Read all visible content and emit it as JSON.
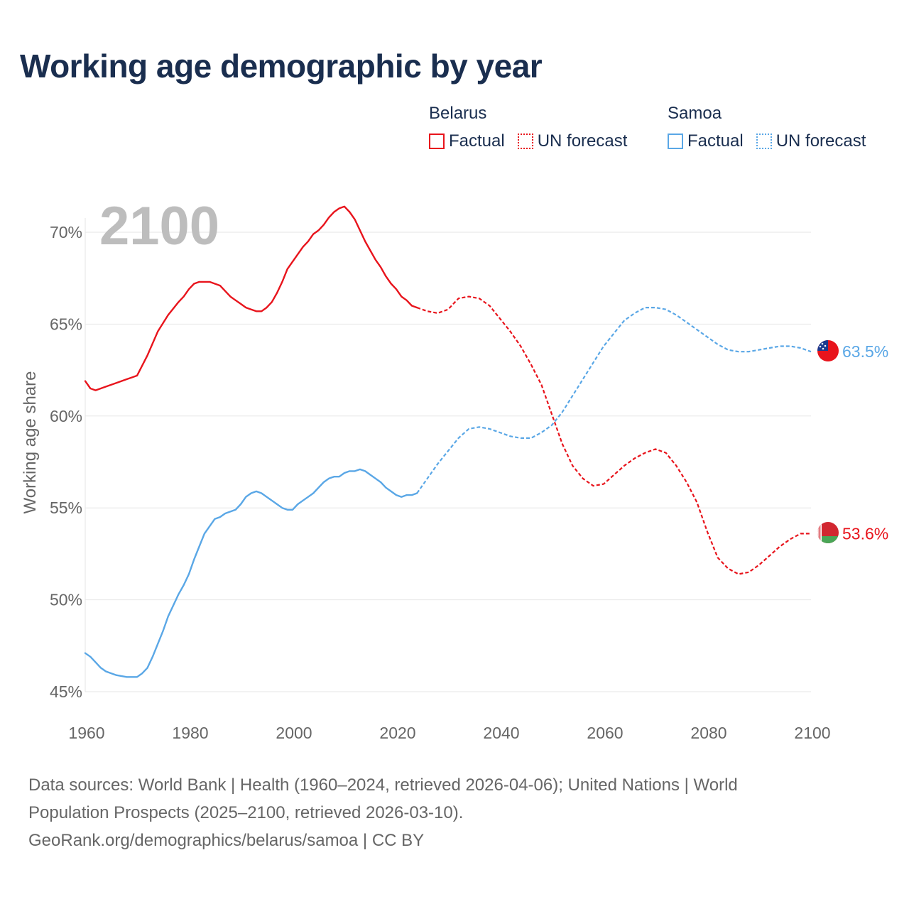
{
  "title": "Working age demographic by year",
  "year_watermark": "2100",
  "legend": {
    "groups": [
      {
        "name": "Belarus",
        "color": "#e8141c",
        "factual_label": "Factual",
        "forecast_label": "UN forecast"
      },
      {
        "name": "Samoa",
        "color": "#5aa7e6",
        "factual_label": "Factual",
        "forecast_label": "UN forecast"
      }
    ]
  },
  "footer": {
    "line1": "Data sources: World Bank | Health (1960–2024, retrieved 2026-04-06); United Nations | World",
    "line2": "Population Prospects (2025–2100, retrieved 2026-03-10).",
    "line3": "GeoRank.org/demographics/belarus/samoa | CC BY"
  },
  "colors": {
    "belarus": "#e8141c",
    "samoa": "#5aa7e6",
    "title": "#1a2e4f",
    "axis_text": "#666666",
    "grid": "#e6e6e6",
    "watermark": "#bdbdbd"
  },
  "chart_data": {
    "type": "line",
    "title": "Working age demographic by year",
    "xlabel": "",
    "ylabel": "Working age share",
    "xlim": [
      1960,
      2100
    ],
    "ylim": [
      44.5,
      72.5
    ],
    "x_ticks": [
      1960,
      1980,
      2000,
      2020,
      2040,
      2060,
      2080,
      2100
    ],
    "y_ticks": [
      45,
      50,
      55,
      60,
      65,
      70
    ],
    "y_tick_labels": [
      "45%",
      "50%",
      "55%",
      "60%",
      "65%",
      "70%"
    ],
    "grid": true,
    "series": [
      {
        "name": "Belarus",
        "end_label": "53.6%",
        "icon": "belarus-flag-icon",
        "factual": {
          "x": [
            1960,
            1961,
            1962,
            1964,
            1966,
            1968,
            1969,
            1970,
            1972,
            1974,
            1976,
            1978,
            1979,
            1980,
            1981,
            1982,
            1983,
            1984,
            1985,
            1986,
            1987,
            1988,
            1989,
            1990,
            1991,
            1992,
            1993,
            1994,
            1995,
            1996,
            1997,
            1998,
            1999,
            2000,
            2001,
            2002,
            2003,
            2004,
            2005,
            2006,
            2007,
            2008,
            2009,
            2010,
            2011,
            2012,
            2013,
            2014,
            2015,
            2016,
            2017,
            2018,
            2019,
            2020,
            2021,
            2022,
            2023,
            2024
          ],
          "y": [
            61.9,
            61.5,
            61.4,
            61.6,
            61.8,
            62.0,
            62.1,
            62.2,
            63.3,
            64.6,
            65.5,
            66.2,
            66.5,
            66.9,
            67.2,
            67.3,
            67.3,
            67.3,
            67.2,
            67.1,
            66.8,
            66.5,
            66.3,
            66.1,
            65.9,
            65.8,
            65.7,
            65.7,
            65.9,
            66.2,
            66.7,
            67.3,
            68.0,
            68.4,
            68.8,
            69.2,
            69.5,
            69.9,
            70.1,
            70.4,
            70.8,
            71.1,
            71.3,
            71.4,
            71.1,
            70.7,
            70.1,
            69.5,
            69.0,
            68.5,
            68.1,
            67.6,
            67.2,
            66.9,
            66.5,
            66.3,
            66.0,
            65.9
          ]
        },
        "forecast": {
          "x": [
            2024,
            2026,
            2028,
            2030,
            2032,
            2034,
            2036,
            2038,
            2040,
            2042,
            2044,
            2046,
            2048,
            2050,
            2052,
            2054,
            2056,
            2058,
            2060,
            2062,
            2064,
            2066,
            2068,
            2070,
            2072,
            2074,
            2076,
            2078,
            2080,
            2082,
            2084,
            2086,
            2088,
            2090,
            2092,
            2094,
            2096,
            2098,
            2100
          ],
          "y": [
            65.9,
            65.7,
            65.6,
            65.8,
            66.4,
            66.5,
            66.4,
            66.0,
            65.3,
            64.6,
            63.8,
            62.8,
            61.7,
            60.1,
            58.5,
            57.3,
            56.6,
            56.2,
            56.3,
            56.8,
            57.3,
            57.7,
            58.0,
            58.2,
            58.0,
            57.3,
            56.4,
            55.3,
            53.7,
            52.3,
            51.7,
            51.4,
            51.5,
            51.9,
            52.4,
            52.9,
            53.3,
            53.6,
            53.6
          ]
        }
      },
      {
        "name": "Samoa",
        "end_label": "63.5%",
        "icon": "samoa-flag-icon",
        "factual": {
          "x": [
            1960,
            1961,
            1962,
            1963,
            1964,
            1966,
            1968,
            1969,
            1970,
            1971,
            1972,
            1973,
            1974,
            1975,
            1976,
            1977,
            1978,
            1979,
            1980,
            1981,
            1982,
            1983,
            1984,
            1985,
            1986,
            1987,
            1988,
            1989,
            1990,
            1991,
            1992,
            1993,
            1994,
            1995,
            1996,
            1997,
            1998,
            1999,
            2000,
            2001,
            2002,
            2003,
            2004,
            2005,
            2006,
            2007,
            2008,
            2009,
            2010,
            2011,
            2012,
            2013,
            2014,
            2015,
            2016,
            2017,
            2018,
            2019,
            2020,
            2021,
            2022,
            2023,
            2024
          ],
          "y": [
            47.1,
            46.9,
            46.6,
            46.3,
            46.1,
            45.9,
            45.8,
            45.8,
            45.8,
            46.0,
            46.3,
            46.9,
            47.6,
            48.3,
            49.1,
            49.7,
            50.3,
            50.8,
            51.4,
            52.2,
            52.9,
            53.6,
            54.0,
            54.4,
            54.5,
            54.7,
            54.8,
            54.9,
            55.2,
            55.6,
            55.8,
            55.9,
            55.8,
            55.6,
            55.4,
            55.2,
            55.0,
            54.9,
            54.9,
            55.2,
            55.4,
            55.6,
            55.8,
            56.1,
            56.4,
            56.6,
            56.7,
            56.7,
            56.9,
            57.0,
            57.0,
            57.1,
            57.0,
            56.8,
            56.6,
            56.4,
            56.1,
            55.9,
            55.7,
            55.6,
            55.7,
            55.7,
            55.8
          ]
        },
        "forecast": {
          "x": [
            2024,
            2026,
            2028,
            2030,
            2032,
            2034,
            2036,
            2038,
            2040,
            2042,
            2044,
            2046,
            2048,
            2050,
            2052,
            2054,
            2056,
            2058,
            2060,
            2062,
            2064,
            2066,
            2068,
            2070,
            2072,
            2074,
            2076,
            2078,
            2080,
            2082,
            2084,
            2086,
            2088,
            2090,
            2092,
            2094,
            2096,
            2098,
            2100
          ],
          "y": [
            55.8,
            56.6,
            57.4,
            58.1,
            58.8,
            59.3,
            59.4,
            59.3,
            59.1,
            58.9,
            58.8,
            58.8,
            59.1,
            59.5,
            60.2,
            61.1,
            62.0,
            62.9,
            63.8,
            64.5,
            65.2,
            65.6,
            65.9,
            65.9,
            65.8,
            65.5,
            65.1,
            64.7,
            64.3,
            63.9,
            63.6,
            63.5,
            63.5,
            63.6,
            63.7,
            63.8,
            63.8,
            63.7,
            63.5
          ]
        }
      }
    ]
  }
}
